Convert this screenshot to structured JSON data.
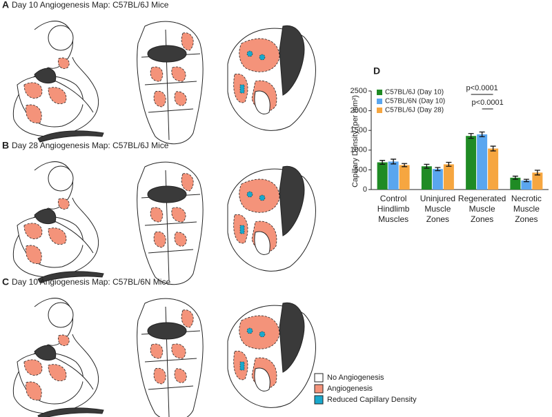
{
  "panels": [
    {
      "letter": "A",
      "title": "Day 10 Angiogenesis Map: C57BL/6J Mice"
    },
    {
      "letter": "B",
      "title": "Day 28 Angiogenesis Map: C57BL/6J Mice"
    },
    {
      "letter": "C",
      "title": "Day 10 Angiogenesis Map: C57BL/6N Mice"
    }
  ],
  "legend": [
    {
      "label": "No Angiogenesis",
      "color": "#ffffff"
    },
    {
      "label": "Angiogenesis",
      "color": "#f4937a"
    },
    {
      "label": "Reduced Capillary Density",
      "color": "#19a8cc"
    }
  ],
  "chart_data": {
    "type": "bar",
    "panel": "D",
    "y_label": "Capillary Density (per mm²)",
    "categories": [
      "Control Hindlimb Muscles",
      "Uninjured Muscle Zones",
      "Regenerated Muscle Zones",
      "Necrotic Muscle Zones"
    ],
    "series": [
      {
        "name": "C57BL/6J (Day 10)",
        "color": "#1f8b24",
        "values": [
          690,
          590,
          1360,
          300
        ],
        "errors": [
          50,
          50,
          60,
          40
        ]
      },
      {
        "name": "C57BL/6N (Day 10)",
        "color": "#5aa6ef",
        "values": [
          710,
          520,
          1400,
          230
        ],
        "errors": [
          60,
          40,
          60,
          30
        ]
      },
      {
        "name": "C57BL/6J (Day 28)",
        "color": "#f6a640",
        "values": [
          620,
          640,
          1040,
          430
        ],
        "errors": [
          40,
          50,
          60,
          60
        ]
      }
    ],
    "annotations": [
      "p<0.0001",
      "p<0.0001"
    ],
    "ylim": [
      0,
      2500
    ],
    "yticks": [
      0,
      500,
      1000,
      1500,
      2000,
      2500
    ],
    "legend_position": "upper left"
  }
}
